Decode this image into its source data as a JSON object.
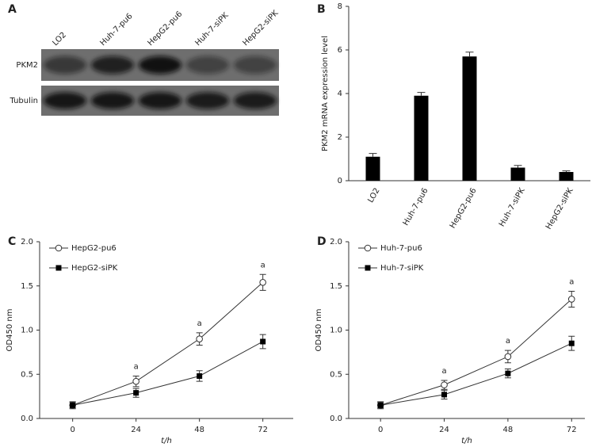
{
  "chart_data": [
    {
      "type": "blot",
      "panel": "A",
      "lanes": [
        "LO2",
        "Huh-7-pu6",
        "HepG2-pu6",
        "Huh-7-siPK",
        "HepG2-siPK"
      ],
      "rows": [
        "PKM2",
        "Tubulin"
      ]
    },
    {
      "type": "bar",
      "panel": "B",
      "ylabel": "PKM2 mRNA expression level",
      "categories": [
        "LO2",
        "Huh-7-pu6",
        "HepG2-pu6",
        "Huh-7-siPK",
        "HepG2-siPK"
      ],
      "values": [
        1.1,
        3.9,
        5.7,
        0.6,
        0.4
      ],
      "errors": [
        0.15,
        0.15,
        0.2,
        0.1,
        0.05
      ],
      "color": "#000000",
      "ylim": [
        0,
        8
      ],
      "yticks": [
        0,
        2,
        4,
        6,
        8
      ]
    },
    {
      "type": "line",
      "panel": "C",
      "xlabel": "t/h",
      "ylabel": "OD450 nm",
      "x": [
        0,
        24,
        48,
        72
      ],
      "xlim": [
        -12.5,
        83.5
      ],
      "xticks": [
        0,
        24,
        48,
        72
      ],
      "ylim": [
        0,
        2
      ],
      "yticks": [
        {
          "value": 0,
          "label": "0.0"
        },
        0.5,
        {
          "value": 1,
          "label": "1.0"
        },
        1.5,
        {
          "value": 2,
          "label": "2.0"
        }
      ],
      "series": [
        {
          "name": "HepG2-pu6",
          "marker": "circle-open",
          "color": "#333333",
          "values": [
            0.15,
            0.42,
            0.9,
            1.54
          ],
          "errors": [
            0.04,
            0.06,
            0.07,
            0.09
          ]
        },
        {
          "name": "HepG2-siPK",
          "marker": "square",
          "color": "#000000",
          "values": [
            0.15,
            0.29,
            0.48,
            0.87
          ],
          "errors": [
            0.03,
            0.05,
            0.06,
            0.08
          ]
        }
      ],
      "annotations": [
        {
          "x": 24,
          "text": "a"
        },
        {
          "x": 48,
          "text": "a"
        },
        {
          "x": 72,
          "text": "a"
        }
      ]
    },
    {
      "type": "line",
      "panel": "D",
      "xlabel": "t/h",
      "ylabel": "OD450 nm",
      "x": [
        0,
        24,
        48,
        72
      ],
      "xlim": [
        -12,
        77
      ],
      "xticks": [
        0,
        24,
        48,
        72
      ],
      "ylim": [
        0,
        2
      ],
      "yticks": [
        {
          "value": 0,
          "label": "0.0"
        },
        0.5,
        {
          "value": 1,
          "label": "1.0"
        },
        1.5,
        {
          "value": 2,
          "label": "2.0"
        }
      ],
      "series": [
        {
          "name": "Huh-7-pu6",
          "marker": "circle-open",
          "color": "#333333",
          "values": [
            0.15,
            0.38,
            0.7,
            1.35
          ],
          "errors": [
            0.04,
            0.05,
            0.07,
            0.09
          ]
        },
        {
          "name": "Huh-7-siPK",
          "marker": "square",
          "color": "#000000",
          "values": [
            0.15,
            0.27,
            0.51,
            0.85
          ],
          "errors": [
            0.03,
            0.05,
            0.05,
            0.08
          ]
        }
      ],
      "annotations": [
        {
          "x": 24,
          "text": "a"
        },
        {
          "x": 48,
          "text": "a"
        },
        {
          "x": 72,
          "text": "a"
        }
      ]
    }
  ]
}
